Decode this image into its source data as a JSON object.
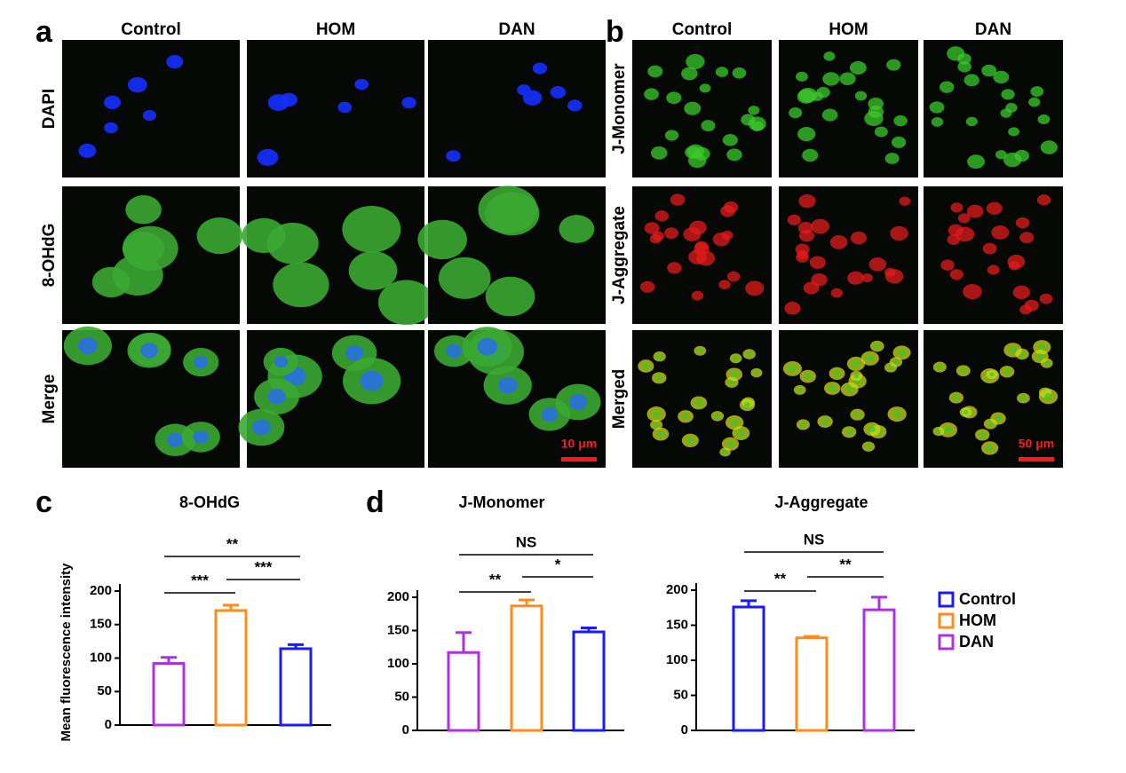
{
  "panels": {
    "a": {
      "label": "a",
      "columns": [
        "Control",
        "HOM",
        "DAN"
      ],
      "rows": [
        "DAPI",
        "8-OHdG",
        "Merge"
      ],
      "scale_bar": "10 μm"
    },
    "b": {
      "label": "b",
      "columns": [
        "Control",
        "HOM",
        "DAN"
      ],
      "rows": [
        "J-Monomer",
        "J-Aggregate",
        "Merged"
      ],
      "scale_bar": "50 μm"
    },
    "c": {
      "label": "c"
    },
    "d": {
      "label": "d"
    }
  },
  "legend": [
    {
      "name": "Control",
      "color": "#1a1aff"
    },
    {
      "name": "HOM",
      "color": "#ff8c1a"
    },
    {
      "name": "DAN",
      "color": "#b030e0"
    }
  ],
  "chart_data": [
    {
      "type": "bar",
      "title": "8-OHdG",
      "ylabel": "Mean fluorescence intensity",
      "categories": [
        null,
        null,
        null
      ],
      "values": [
        92,
        171,
        114
      ],
      "errors": [
        9,
        8,
        6
      ],
      "colors": [
        "#b030e0",
        "#ff8c1a",
        "#1a1aff"
      ],
      "ylim": [
        0,
        200
      ],
      "yticks": [
        0,
        50,
        100,
        150,
        200
      ],
      "annotations": [
        "**",
        "***",
        "***"
      ]
    },
    {
      "type": "bar",
      "title": "J-Monomer",
      "categories": [
        null,
        null,
        null
      ],
      "values": [
        117,
        187,
        148
      ],
      "errors": [
        30,
        9,
        6
      ],
      "colors": [
        "#b030e0",
        "#ff8c1a",
        "#1a1aff"
      ],
      "ylim": [
        0,
        200
      ],
      "yticks": [
        0,
        50,
        100,
        150,
        200
      ],
      "annotations": [
        "NS",
        "**",
        "*"
      ]
    },
    {
      "type": "bar",
      "title": "J-Aggregate",
      "categories": [
        null,
        null,
        null
      ],
      "values": [
        176,
        132,
        172
      ],
      "errors": [
        9,
        2,
        18
      ],
      "colors": [
        "#1a1aff",
        "#ff8c1a",
        "#b030e0"
      ],
      "ylim": [
        0,
        200
      ],
      "yticks": [
        0,
        50,
        100,
        150,
        200
      ],
      "annotations": [
        "NS",
        "**",
        "**"
      ]
    }
  ]
}
